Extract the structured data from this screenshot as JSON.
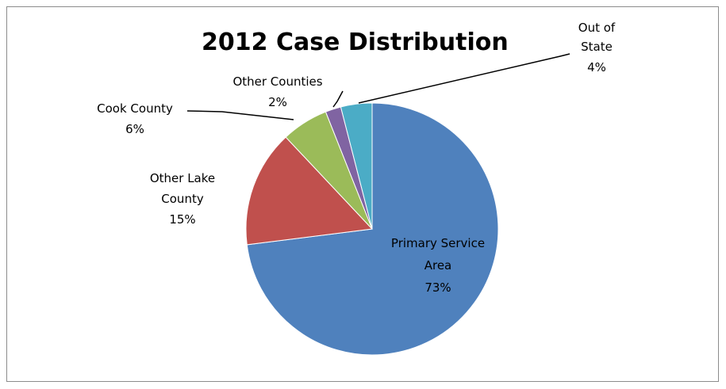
{
  "chart_data": {
    "type": "pie",
    "title": "2012 Case Distribution",
    "slices": [
      {
        "name": "Primary Service Area",
        "value": 73,
        "label": "73%",
        "color": "#4f81bd"
      },
      {
        "name": "Other Lake County",
        "value": 15,
        "label": "15%",
        "color": "#c0504d"
      },
      {
        "name": "Cook County",
        "value": 6,
        "label": "6%",
        "color": "#9bbb59"
      },
      {
        "name": "Other Counties",
        "value": 2,
        "label": "2%",
        "color": "#8064a2"
      },
      {
        "name": "Out of State",
        "value": 4,
        "label": "4%",
        "color": "#4bacc6"
      }
    ],
    "legend": "none",
    "data_labels": "category and percentage"
  }
}
